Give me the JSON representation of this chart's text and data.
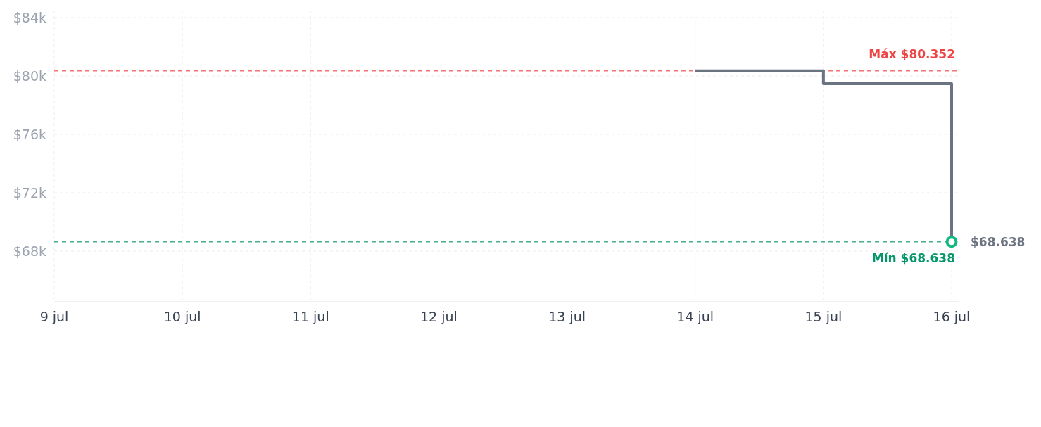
{
  "chart_data": {
    "type": "step",
    "x": [
      "--07-14",
      "--07-15",
      "--07-16"
    ],
    "series": [
      {
        "color": "#6b7280",
        "values": [
          80352,
          79470,
          68638
        ],
        "marker": "none"
      },
      {
        "type": "scatter",
        "color": "#10b981",
        "x": [
          "--07-16"
        ],
        "values": [
          68638
        ],
        "marker": "circle"
      }
    ],
    "xlim": [
      "--07-09",
      "--07-16"
    ],
    "xticks": [
      {
        "value": "--07-09",
        "label": "9 jul"
      },
      {
        "value": "--07-10",
        "label": "10 jul"
      },
      {
        "value": "--07-11",
        "label": "11 jul"
      },
      {
        "value": "--07-12",
        "label": "12 jul"
      },
      {
        "value": "--07-13",
        "label": "13 jul"
      },
      {
        "value": "--07-14",
        "label": "14 jul"
      },
      {
        "value": "--07-15",
        "label": "15 jul"
      },
      {
        "value": "--07-16",
        "label": "16 jul"
      }
    ],
    "ylim": [
      64530,
      84480
    ],
    "yticks": [
      {
        "value": 68000,
        "label": "$68k"
      },
      {
        "value": 72000,
        "label": "$72k"
      },
      {
        "value": 76000,
        "label": "$76k"
      },
      {
        "value": 80000,
        "label": "$80k"
      },
      {
        "value": 84000,
        "label": "$84k"
      }
    ],
    "grid": true,
    "ref_lines": [
      {
        "axis": "y",
        "value": 80352,
        "label": "Máx $80.352",
        "color": "#ef4444",
        "line_style": "dashed"
      },
      {
        "axis": "y",
        "value": 68638,
        "label": "Mín $68.638",
        "color": "#059669",
        "line_style": "dashed"
      }
    ],
    "annotations": [
      {
        "text": "$68.638",
        "x": "--07-16",
        "y": 68638
      }
    ]
  }
}
